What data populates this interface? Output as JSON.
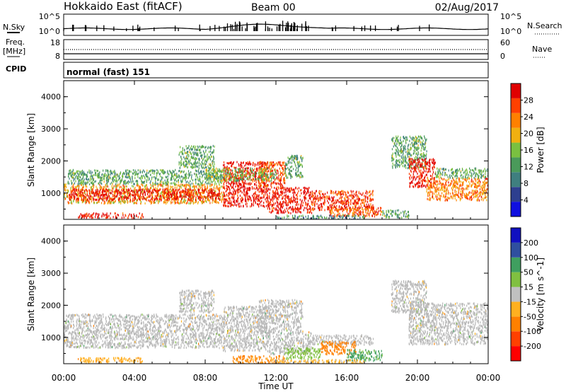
{
  "header": {
    "station": "Hokkaido East (fitACF)",
    "beam": "Beam 00",
    "date": "02/Aug/2017"
  },
  "nsky_panel": {
    "left_label": "N.Sky",
    "right_label": "N.Search",
    "left_ticks": [
      "10^5",
      "10^0"
    ],
    "right_ticks": [
      "10^5",
      "10^0"
    ]
  },
  "freq_panel": {
    "left_label_1": "Freq.",
    "left_label_2": "[MHz]",
    "right_label": "Nave",
    "left_ticks": [
      "18",
      "8"
    ],
    "right_ticks": [
      "60",
      "0"
    ]
  },
  "cpid_panel": {
    "label": "CPID",
    "value": "normal (fast) 151"
  },
  "colors": {
    "power_scale": [
      "#1010e0",
      "#2e3f8f",
      "#3f7f7f",
      "#4a9a5a",
      "#7ac040",
      "#f0b010",
      "#ff8000",
      "#ff4000",
      "#e00000"
    ],
    "velocity_scale": [
      "#ff0000",
      "#ff4000",
      "#ff8000",
      "#ffb020",
      "#c0c0c0",
      "#80c040",
      "#3f9f5f",
      "#2f4f9f",
      "#1010c0"
    ],
    "ground_scatter": "#b8b8b8"
  },
  "chart_data": [
    {
      "type": "heatmap",
      "title": "",
      "xlabel": "",
      "ylabel": "Slant Range [km]",
      "colorbar_label": "Power [dB]",
      "colorbar_ticks": [
        "28",
        "24",
        "20",
        "16",
        "12",
        "8",
        "4"
      ],
      "x_ticks": [
        "00:00",
        "04:00",
        "08:00",
        "12:00",
        "16:00",
        "20:00",
        "00:00"
      ],
      "y_ticks": [
        "4000",
        "3000",
        "2000",
        "1000"
      ],
      "xlim": [
        0,
        24
      ],
      "ylim": [
        180,
        4500
      ],
      "regions": [
        {
          "x0": 0.0,
          "x1": 9.0,
          "y0": 700,
          "y1": 1300,
          "value": 20
        },
        {
          "x0": 0.3,
          "x1": 8.8,
          "y0": 800,
          "y1": 1150,
          "value": 28
        },
        {
          "x0": 0.2,
          "x1": 9.0,
          "y0": 1300,
          "y1": 1750,
          "value": 12
        },
        {
          "x0": 0.8,
          "x1": 4.5,
          "y0": 250,
          "y1": 400,
          "value": 28
        },
        {
          "x0": 6.5,
          "x1": 8.5,
          "y0": 1800,
          "y1": 2500,
          "value": 12
        },
        {
          "x0": 9.0,
          "x1": 11.5,
          "y0": 600,
          "y1": 2000,
          "value": 28
        },
        {
          "x0": 11.5,
          "x1": 14.0,
          "y0": 400,
          "y1": 1200,
          "value": 28
        },
        {
          "x0": 14.0,
          "x1": 17.5,
          "y0": 500,
          "y1": 1100,
          "value": 26
        },
        {
          "x0": 15.0,
          "x1": 18.0,
          "y0": 300,
          "y1": 600,
          "value": 24
        },
        {
          "x0": 11.0,
          "x1": 12.5,
          "y0": 1200,
          "y1": 2000,
          "value": 24
        },
        {
          "x0": 12.5,
          "x1": 13.5,
          "y0": 1500,
          "y1": 2200,
          "value": 12
        },
        {
          "x0": 8.0,
          "x1": 12.0,
          "y0": 1400,
          "y1": 1800,
          "value": 14
        },
        {
          "x0": 18.5,
          "x1": 20.5,
          "y0": 1800,
          "y1": 2800,
          "value": 12
        },
        {
          "x0": 19.5,
          "x1": 21.0,
          "y0": 1200,
          "y1": 2100,
          "value": 28
        },
        {
          "x0": 20.5,
          "x1": 24.0,
          "y0": 800,
          "y1": 1500,
          "value": 22
        },
        {
          "x0": 21.0,
          "x1": 24.0,
          "y0": 1500,
          "y1": 1800,
          "value": 12
        },
        {
          "x0": 18.0,
          "x1": 19.5,
          "y0": 250,
          "y1": 500,
          "value": 12
        },
        {
          "x0": 12.0,
          "x1": 17.0,
          "y0": 200,
          "y1": 330,
          "value": 10
        }
      ]
    },
    {
      "type": "heatmap",
      "title": "",
      "xlabel": "Time UT",
      "ylabel": "Slant Range [km]",
      "colorbar_label": "Velocity [m s^-1]",
      "colorbar_ticks": [
        "200",
        "100",
        "50",
        "15",
        "-15",
        "-50",
        "-100",
        "-200"
      ],
      "x_ticks": [
        "00:00",
        "04:00",
        "08:00",
        "12:00",
        "16:00",
        "20:00",
        "00:00"
      ],
      "y_ticks": [
        "4000",
        "3000",
        "2000",
        "1000"
      ],
      "xlim": [
        0,
        24
      ],
      "ylim": [
        180,
        4500
      ],
      "regions": [
        {
          "x0": 0.0,
          "x1": 9.0,
          "y0": 700,
          "y1": 1750,
          "value": 0
        },
        {
          "x0": 0.8,
          "x1": 4.5,
          "y0": 250,
          "y1": 400,
          "value": -40
        },
        {
          "x0": 6.5,
          "x1": 8.5,
          "y0": 1800,
          "y1": 2500,
          "value": 0
        },
        {
          "x0": 9.0,
          "x1": 11.5,
          "y0": 600,
          "y1": 2000,
          "value": 0
        },
        {
          "x0": 11.0,
          "x1": 13.5,
          "y0": 1200,
          "y1": 2200,
          "value": 0
        },
        {
          "x0": 11.5,
          "x1": 14.0,
          "y0": 500,
          "y1": 1200,
          "value": 0
        },
        {
          "x0": 14.0,
          "x1": 17.5,
          "y0": 800,
          "y1": 1100,
          "value": 0
        },
        {
          "x0": 9.5,
          "x1": 12.5,
          "y0": 200,
          "y1": 450,
          "value": -60
        },
        {
          "x0": 12.5,
          "x1": 14.5,
          "y0": 350,
          "y1": 700,
          "value": 30
        },
        {
          "x0": 14.5,
          "x1": 16.5,
          "y0": 500,
          "y1": 900,
          "value": -80
        },
        {
          "x0": 16.0,
          "x1": 18.0,
          "y0": 300,
          "y1": 650,
          "value": 60
        },
        {
          "x0": 18.5,
          "x1": 20.5,
          "y0": 1800,
          "y1": 2800,
          "value": 0
        },
        {
          "x0": 19.5,
          "x1": 24.0,
          "y0": 800,
          "y1": 2100,
          "value": 0
        },
        {
          "x0": 12.0,
          "x1": 17.0,
          "y0": 200,
          "y1": 330,
          "value": -20
        }
      ]
    }
  ]
}
